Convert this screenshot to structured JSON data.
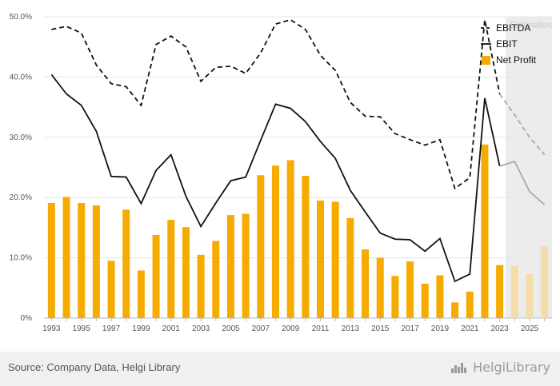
{
  "chart_data": {
    "type": "bar",
    "x": [
      1993,
      1994,
      1995,
      1996,
      1997,
      1998,
      1999,
      2000,
      2001,
      2002,
      2003,
      2004,
      2005,
      2006,
      2007,
      2008,
      2009,
      2010,
      2011,
      2012,
      2013,
      2014,
      2015,
      2016,
      2017,
      2018,
      2019,
      2020,
      2021,
      2022,
      2023,
      2024,
      2025,
      2026
    ],
    "x_tick_labels": [
      "1993",
      "1995",
      "1997",
      "1999",
      "2001",
      "2003",
      "2005",
      "2007",
      "2009",
      "2011",
      "2013",
      "2015",
      "2017",
      "2019",
      "2021",
      "2023",
      "2025"
    ],
    "y_tick_labels": [
      "0%",
      "10.0%",
      "20.0%",
      "30.0%",
      "40.0%",
      "50.0%"
    ],
    "ylim": [
      0,
      50
    ],
    "estimates_from": 2024,
    "estimates_label": "Estimates",
    "series": [
      {
        "name": "EBITDA",
        "kind": "line-dashed",
        "color": "#111111",
        "values": [
          47.9,
          48.4,
          47.3,
          42.0,
          38.9,
          38.4,
          35.3,
          45.4,
          46.8,
          45.0,
          39.3,
          41.6,
          41.8,
          40.6,
          44.0,
          48.8,
          49.5,
          47.9,
          43.6,
          41.1,
          35.8,
          33.5,
          33.4,
          30.6,
          29.6,
          28.7,
          29.6,
          21.5,
          23.3,
          49.5,
          37.2,
          33.7,
          30.0,
          27.1
        ]
      },
      {
        "name": "EBIT",
        "kind": "line",
        "color": "#111111",
        "values": [
          40.4,
          37.2,
          35.3,
          31.0,
          23.5,
          23.4,
          19.0,
          24.5,
          27.1,
          20.2,
          15.2,
          19.1,
          22.8,
          23.4,
          29.5,
          35.5,
          34.8,
          32.6,
          29.3,
          26.5,
          21.2,
          17.6,
          14.1,
          13.1,
          13.0,
          11.1,
          13.2,
          6.1,
          7.3,
          36.5,
          25.2,
          26.0,
          21.0,
          18.8
        ]
      },
      {
        "name": "Net Profit",
        "kind": "bar",
        "color": "#f5ab00",
        "values": [
          19.1,
          20.1,
          19.1,
          18.7,
          9.5,
          18.0,
          7.9,
          13.8,
          16.3,
          15.1,
          10.5,
          12.8,
          17.1,
          17.3,
          23.7,
          25.3,
          26.2,
          23.6,
          19.5,
          19.3,
          16.6,
          11.4,
          10.0,
          7.0,
          9.4,
          5.7,
          7.1,
          2.6,
          4.4,
          28.8,
          8.8,
          8.6,
          7.3,
          11.9
        ]
      }
    ],
    "legend": "top-right",
    "grid": true
  },
  "colors": {
    "bar": "#f5ab00",
    "bar_estimate": "#f5dcaa",
    "line": "#111111",
    "line_estimate": "#aaaaaa",
    "estimate_bg": "#ececec",
    "grid": "#e6e6e6"
  },
  "footer": {
    "source": "Source: Company Data, Helgi Library",
    "brand": "HelgiLibrary",
    "brand_icon": "helgi-logo-icon"
  }
}
